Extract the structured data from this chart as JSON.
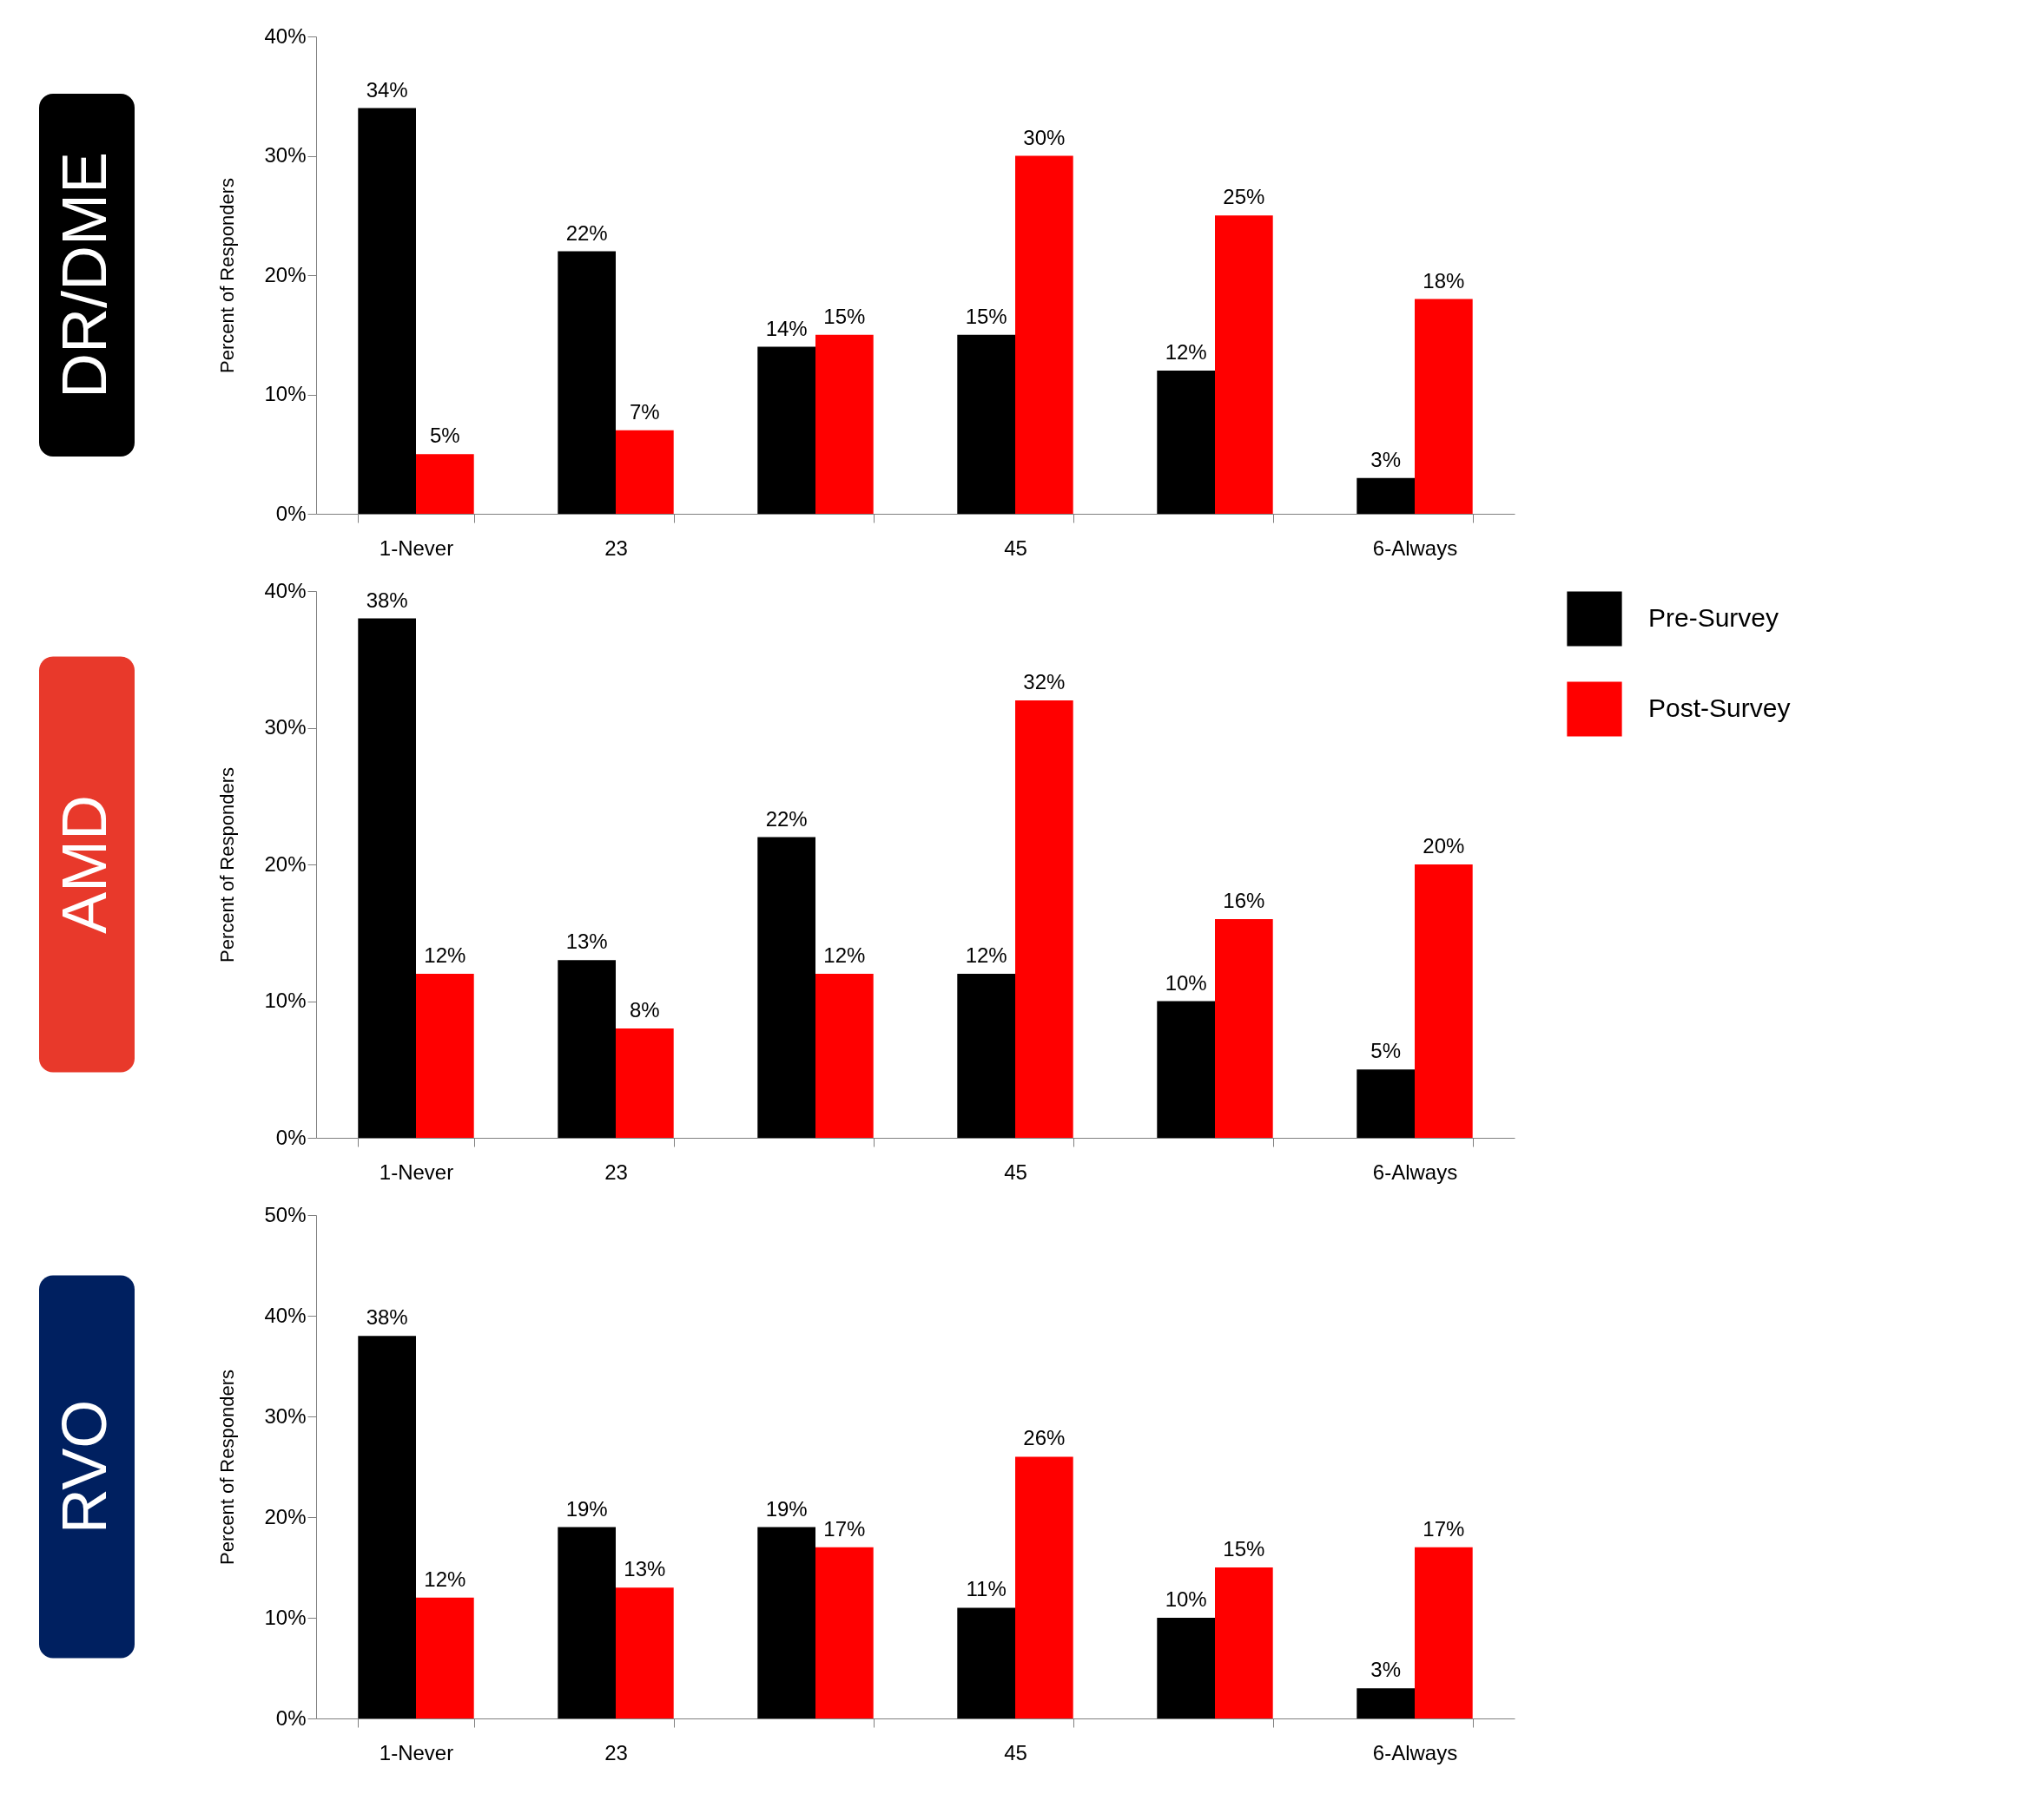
{
  "chart_data": [
    {
      "type": "bar",
      "title": "DR/DME",
      "ylabel": "Percent of Responders",
      "categories": [
        "1-Never",
        "23",
        null,
        "45",
        null,
        "6-Always"
      ],
      "series": [
        {
          "color": "#000000",
          "values": [
            34,
            22,
            14,
            15,
            12,
            3
          ],
          "value_labels": [
            "34%",
            "22%",
            "14%",
            "15%",
            "12%",
            "3%"
          ]
        },
        {
          "color": "#ff0000",
          "values": [
            5,
            7,
            15,
            30,
            25,
            18
          ],
          "value_labels": [
            "5%",
            "7%",
            "15%",
            "30%",
            "25%",
            "18%"
          ]
        }
      ],
      "ylim": [
        0,
        40
      ],
      "yticks": [
        {
          "value": 0,
          "label": "0%"
        },
        {
          "value": 10,
          "label": "10%"
        },
        {
          "value": 20,
          "label": "20%"
        },
        {
          "value": 30,
          "label": "30%"
        },
        {
          "value": 40,
          "label": "40%"
        }
      ],
      "grid": false,
      "legend": false
    },
    {
      "type": "bar",
      "title": "AMD",
      "ylabel": "Percent of Responders",
      "categories": [
        "1-Never",
        "23",
        null,
        "45",
        null,
        "6-Always"
      ],
      "series": [
        {
          "name": "Pre-Survey",
          "color": "#000000",
          "values": [
            38,
            13,
            22,
            12,
            10,
            5
          ],
          "value_labels": [
            "38%",
            "13%",
            "22%",
            "12%",
            "10%",
            "5%"
          ]
        },
        {
          "name": "Post-Survey",
          "color": "#ff0000",
          "values": [
            12,
            8,
            12,
            32,
            16,
            20
          ],
          "value_labels": [
            "12%",
            "8%",
            "12%",
            "32%",
            "16%",
            "20%"
          ]
        }
      ],
      "ylim": [
        0,
        40
      ],
      "yticks": [
        {
          "value": 0,
          "label": "0%"
        },
        {
          "value": 10,
          "label": "10%"
        },
        {
          "value": 20,
          "label": "20%"
        },
        {
          "value": 30,
          "label": "30%"
        },
        {
          "value": 40,
          "label": "40%"
        }
      ],
      "grid": false,
      "legend": "right"
    },
    {
      "type": "bar",
      "title": "RVO",
      "ylabel": "Percent of Responders",
      "categories": [
        "1-Never",
        "23",
        null,
        "45",
        null,
        "6-Always"
      ],
      "series": [
        {
          "color": "#000000",
          "values": [
            38,
            19,
            19,
            11,
            10,
            3
          ],
          "value_labels": [
            "38%",
            "19%",
            "19%",
            "11%",
            "10%",
            "3%"
          ]
        },
        {
          "color": "#ff0000",
          "values": [
            12,
            13,
            17,
            26,
            15,
            17
          ],
          "value_labels": [
            "12%",
            "13%",
            "17%",
            "26%",
            "15%",
            "17%"
          ]
        }
      ],
      "ylim": [
        0,
        50
      ],
      "yticks": [
        {
          "value": 0,
          "label": "0%"
        },
        {
          "value": 10,
          "label": "10%"
        },
        {
          "value": 20,
          "label": "20%"
        },
        {
          "value": 30,
          "label": "30%"
        },
        {
          "value": 40,
          "label": "40%"
        },
        {
          "value": 50,
          "label": "50%"
        }
      ],
      "grid": false,
      "legend": false
    }
  ]
}
